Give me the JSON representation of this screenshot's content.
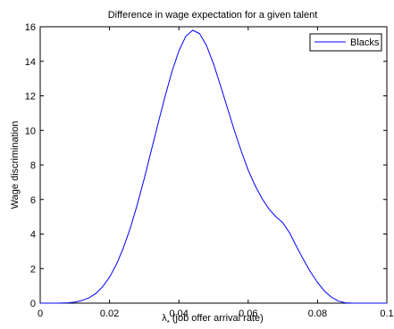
{
  "chart_data": {
    "type": "line",
    "title": "Difference in wage expectation for a given talent",
    "xlabel_symbol": "λ",
    "xlabel_subscript": "*",
    "xlabel_text": " (job offer arrival rate)",
    "ylabel": "Wage discrimination",
    "xlim": [
      0,
      0.1
    ],
    "ylim": [
      0,
      16
    ],
    "x_ticks": [
      0,
      0.02,
      0.04,
      0.06,
      0.08,
      0.1
    ],
    "x_tick_labels": [
      "0",
      "0.02",
      "0.04",
      "0.06",
      "0.08",
      "0.1"
    ],
    "y_ticks": [
      0,
      2,
      4,
      6,
      8,
      10,
      12,
      14,
      16
    ],
    "y_tick_labels": [
      "0",
      "2",
      "4",
      "6",
      "8",
      "10",
      "12",
      "14",
      "16"
    ],
    "grid": false,
    "legend_position": "top-right",
    "series": [
      {
        "name": "Blacks",
        "color": "#0000ff",
        "x": [
          0,
          0.005,
          0.008,
          0.01,
          0.012,
          0.014,
          0.016,
          0.018,
          0.02,
          0.022,
          0.024,
          0.026,
          0.028,
          0.03,
          0.032,
          0.034,
          0.036,
          0.038,
          0.04,
          0.042,
          0.044,
          0.046,
          0.048,
          0.05,
          0.052,
          0.054,
          0.056,
          0.058,
          0.06,
          0.062,
          0.064,
          0.066,
          0.068,
          0.07,
          0.072,
          0.074,
          0.076,
          0.078,
          0.08,
          0.082,
          0.084,
          0.086,
          0.088,
          0.09,
          0.095,
          0.1
        ],
        "values": [
          0,
          0,
          0.02,
          0.06,
          0.15,
          0.3,
          0.55,
          0.95,
          1.5,
          2.25,
          3.2,
          4.35,
          5.7,
          7.2,
          8.8,
          10.4,
          11.95,
          13.4,
          14.6,
          15.45,
          15.8,
          15.6,
          14.9,
          13.85,
          12.6,
          11.3,
          10.0,
          8.8,
          7.7,
          6.8,
          6.05,
          5.45,
          5.0,
          4.65,
          4.05,
          3.25,
          2.5,
          1.8,
          1.2,
          0.7,
          0.35,
          0.12,
          0.02,
          0,
          0,
          0
        ]
      }
    ]
  }
}
